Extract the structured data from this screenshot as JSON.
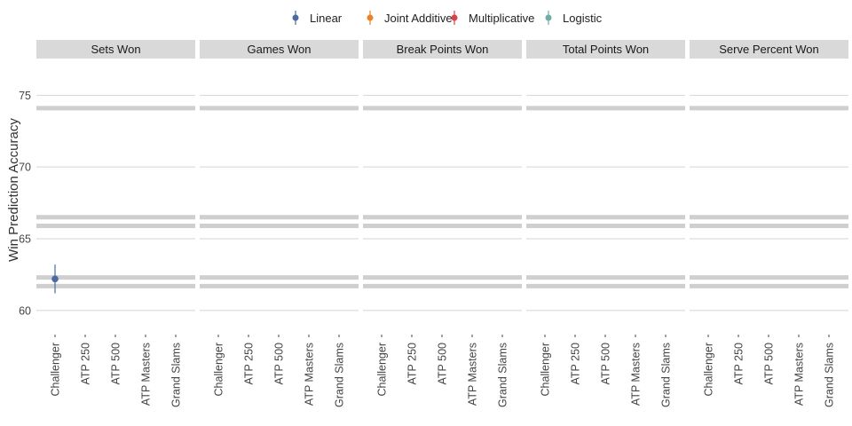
{
  "chart_data": {
    "type": "scatter",
    "ylabel": "Win Prediction Accuracy",
    "ylim": [
      59,
      77
    ],
    "yticks": [
      60,
      65,
      70,
      75
    ],
    "categories": [
      "Challenger",
      "ATP 250",
      "ATP 500",
      "ATP Masters",
      "Grand Slams"
    ],
    "panels": [
      "Sets Won",
      "Games Won",
      "Break Points Won",
      "Total Points Won",
      "Serve Percent Won"
    ],
    "legend_position": "top",
    "series": [
      {
        "name": "Linear",
        "color": "#4a6b9e"
      },
      {
        "name": "Joint Additive",
        "color": "#e8832a"
      },
      {
        "name": "Multiplicative",
        "color": "#d9414a"
      },
      {
        "name": "Logistic",
        "color": "#6dada6"
      }
    ],
    "points": [
      {
        "panel": "Sets Won",
        "category": "Challenger",
        "series": "Linear",
        "y": 62.2,
        "ymin": 61.2,
        "ymax": 63.2
      }
    ],
    "reference_lines": [
      61.7,
      62.3,
      65.9,
      66.5,
      74.1
    ]
  }
}
